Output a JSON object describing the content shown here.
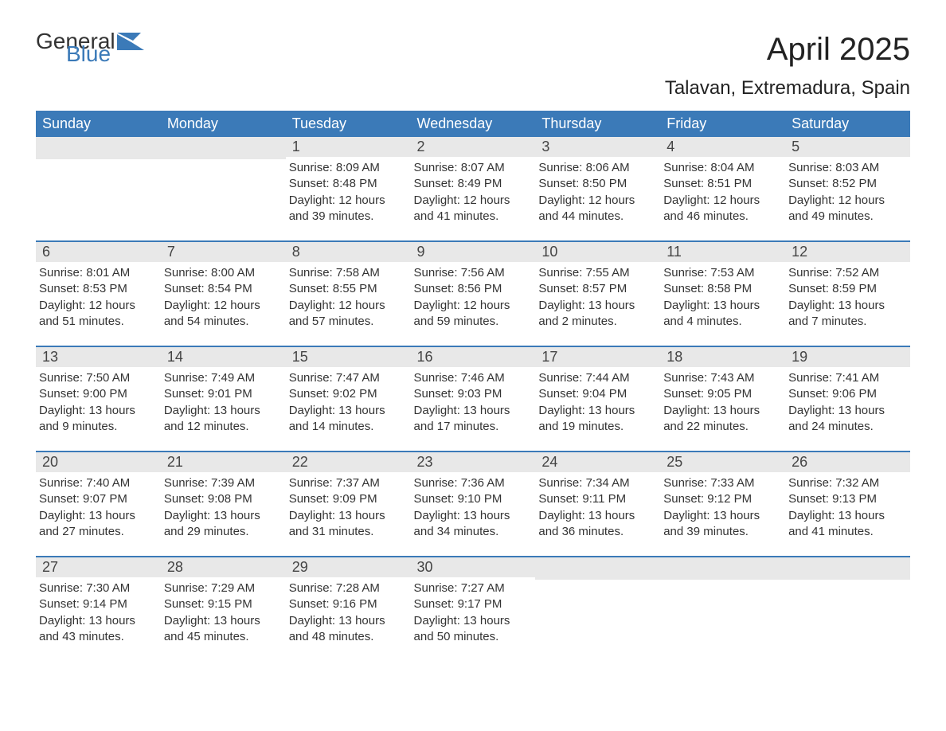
{
  "logo": {
    "part1": "General",
    "part2": "Blue"
  },
  "title": "April 2025",
  "location": "Talavan, Extremadura, Spain",
  "weekday_headers": [
    "Sunday",
    "Monday",
    "Tuesday",
    "Wednesday",
    "Thursday",
    "Friday",
    "Saturday"
  ],
  "colors": {
    "header_bg": "#3b7ab8",
    "header_text": "#ffffff",
    "daynum_bg": "#e8e8e8",
    "row_border": "#3b7ab8",
    "logo_accent": "#3b7ab8",
    "body_text": "#333333"
  },
  "weeks": [
    [
      {
        "day": "",
        "sunrise": "",
        "sunset": "",
        "daylight": ""
      },
      {
        "day": "",
        "sunrise": "",
        "sunset": "",
        "daylight": ""
      },
      {
        "day": "1",
        "sunrise": "Sunrise: 8:09 AM",
        "sunset": "Sunset: 8:48 PM",
        "daylight": "Daylight: 12 hours and 39 minutes."
      },
      {
        "day": "2",
        "sunrise": "Sunrise: 8:07 AM",
        "sunset": "Sunset: 8:49 PM",
        "daylight": "Daylight: 12 hours and 41 minutes."
      },
      {
        "day": "3",
        "sunrise": "Sunrise: 8:06 AM",
        "sunset": "Sunset: 8:50 PM",
        "daylight": "Daylight: 12 hours and 44 minutes."
      },
      {
        "day": "4",
        "sunrise": "Sunrise: 8:04 AM",
        "sunset": "Sunset: 8:51 PM",
        "daylight": "Daylight: 12 hours and 46 minutes."
      },
      {
        "day": "5",
        "sunrise": "Sunrise: 8:03 AM",
        "sunset": "Sunset: 8:52 PM",
        "daylight": "Daylight: 12 hours and 49 minutes."
      }
    ],
    [
      {
        "day": "6",
        "sunrise": "Sunrise: 8:01 AM",
        "sunset": "Sunset: 8:53 PM",
        "daylight": "Daylight: 12 hours and 51 minutes."
      },
      {
        "day": "7",
        "sunrise": "Sunrise: 8:00 AM",
        "sunset": "Sunset: 8:54 PM",
        "daylight": "Daylight: 12 hours and 54 minutes."
      },
      {
        "day": "8",
        "sunrise": "Sunrise: 7:58 AM",
        "sunset": "Sunset: 8:55 PM",
        "daylight": "Daylight: 12 hours and 57 minutes."
      },
      {
        "day": "9",
        "sunrise": "Sunrise: 7:56 AM",
        "sunset": "Sunset: 8:56 PM",
        "daylight": "Daylight: 12 hours and 59 minutes."
      },
      {
        "day": "10",
        "sunrise": "Sunrise: 7:55 AM",
        "sunset": "Sunset: 8:57 PM",
        "daylight": "Daylight: 13 hours and 2 minutes."
      },
      {
        "day": "11",
        "sunrise": "Sunrise: 7:53 AM",
        "sunset": "Sunset: 8:58 PM",
        "daylight": "Daylight: 13 hours and 4 minutes."
      },
      {
        "day": "12",
        "sunrise": "Sunrise: 7:52 AM",
        "sunset": "Sunset: 8:59 PM",
        "daylight": "Daylight: 13 hours and 7 minutes."
      }
    ],
    [
      {
        "day": "13",
        "sunrise": "Sunrise: 7:50 AM",
        "sunset": "Sunset: 9:00 PM",
        "daylight": "Daylight: 13 hours and 9 minutes."
      },
      {
        "day": "14",
        "sunrise": "Sunrise: 7:49 AM",
        "sunset": "Sunset: 9:01 PM",
        "daylight": "Daylight: 13 hours and 12 minutes."
      },
      {
        "day": "15",
        "sunrise": "Sunrise: 7:47 AM",
        "sunset": "Sunset: 9:02 PM",
        "daylight": "Daylight: 13 hours and 14 minutes."
      },
      {
        "day": "16",
        "sunrise": "Sunrise: 7:46 AM",
        "sunset": "Sunset: 9:03 PM",
        "daylight": "Daylight: 13 hours and 17 minutes."
      },
      {
        "day": "17",
        "sunrise": "Sunrise: 7:44 AM",
        "sunset": "Sunset: 9:04 PM",
        "daylight": "Daylight: 13 hours and 19 minutes."
      },
      {
        "day": "18",
        "sunrise": "Sunrise: 7:43 AM",
        "sunset": "Sunset: 9:05 PM",
        "daylight": "Daylight: 13 hours and 22 minutes."
      },
      {
        "day": "19",
        "sunrise": "Sunrise: 7:41 AM",
        "sunset": "Sunset: 9:06 PM",
        "daylight": "Daylight: 13 hours and 24 minutes."
      }
    ],
    [
      {
        "day": "20",
        "sunrise": "Sunrise: 7:40 AM",
        "sunset": "Sunset: 9:07 PM",
        "daylight": "Daylight: 13 hours and 27 minutes."
      },
      {
        "day": "21",
        "sunrise": "Sunrise: 7:39 AM",
        "sunset": "Sunset: 9:08 PM",
        "daylight": "Daylight: 13 hours and 29 minutes."
      },
      {
        "day": "22",
        "sunrise": "Sunrise: 7:37 AM",
        "sunset": "Sunset: 9:09 PM",
        "daylight": "Daylight: 13 hours and 31 minutes."
      },
      {
        "day": "23",
        "sunrise": "Sunrise: 7:36 AM",
        "sunset": "Sunset: 9:10 PM",
        "daylight": "Daylight: 13 hours and 34 minutes."
      },
      {
        "day": "24",
        "sunrise": "Sunrise: 7:34 AM",
        "sunset": "Sunset: 9:11 PM",
        "daylight": "Daylight: 13 hours and 36 minutes."
      },
      {
        "day": "25",
        "sunrise": "Sunrise: 7:33 AM",
        "sunset": "Sunset: 9:12 PM",
        "daylight": "Daylight: 13 hours and 39 minutes."
      },
      {
        "day": "26",
        "sunrise": "Sunrise: 7:32 AM",
        "sunset": "Sunset: 9:13 PM",
        "daylight": "Daylight: 13 hours and 41 minutes."
      }
    ],
    [
      {
        "day": "27",
        "sunrise": "Sunrise: 7:30 AM",
        "sunset": "Sunset: 9:14 PM",
        "daylight": "Daylight: 13 hours and 43 minutes."
      },
      {
        "day": "28",
        "sunrise": "Sunrise: 7:29 AM",
        "sunset": "Sunset: 9:15 PM",
        "daylight": "Daylight: 13 hours and 45 minutes."
      },
      {
        "day": "29",
        "sunrise": "Sunrise: 7:28 AM",
        "sunset": "Sunset: 9:16 PM",
        "daylight": "Daylight: 13 hours and 48 minutes."
      },
      {
        "day": "30",
        "sunrise": "Sunrise: 7:27 AM",
        "sunset": "Sunset: 9:17 PM",
        "daylight": "Daylight: 13 hours and 50 minutes."
      },
      {
        "day": "",
        "sunrise": "",
        "sunset": "",
        "daylight": ""
      },
      {
        "day": "",
        "sunrise": "",
        "sunset": "",
        "daylight": ""
      },
      {
        "day": "",
        "sunrise": "",
        "sunset": "",
        "daylight": ""
      }
    ]
  ]
}
